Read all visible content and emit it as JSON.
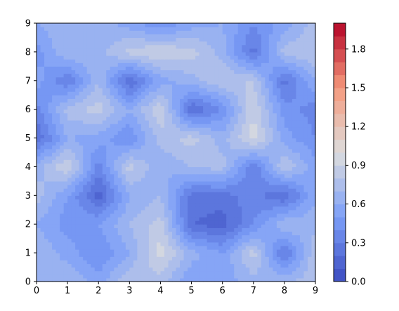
{
  "chart_data": {
    "type": "heatmap",
    "style": "filled-contour",
    "colormap": "coolwarm",
    "x_ticks": [
      "0",
      "1",
      "2",
      "3",
      "4",
      "5",
      "6",
      "7",
      "8",
      "9"
    ],
    "y_ticks": [
      "0",
      "1",
      "2",
      "3",
      "4",
      "5",
      "6",
      "7",
      "8",
      "9"
    ],
    "xlim": [
      0,
      9
    ],
    "ylim": [
      0,
      9
    ],
    "colorbar": {
      "min": 0.0,
      "max": 2.0,
      "levels": 20,
      "ticks": [
        "0.0",
        "0.3",
        "0.6",
        "0.9",
        "1.2",
        "1.5",
        "1.8"
      ],
      "tick_values": [
        0.0,
        0.3,
        0.6,
        0.9,
        1.2,
        1.5,
        1.8
      ]
    },
    "z": [
      [
        0.65,
        0.7,
        0.55,
        0.8,
        0.75,
        0.5,
        0.55,
        0.65,
        0.7,
        0.75
      ],
      [
        0.7,
        0.55,
        0.4,
        0.6,
        0.95,
        0.65,
        0.5,
        0.85,
        0.25,
        0.8
      ],
      [
        0.6,
        0.45,
        0.5,
        0.7,
        0.85,
        0.2,
        0.15,
        0.4,
        0.7,
        0.65
      ],
      [
        0.75,
        0.5,
        0.15,
        0.6,
        0.7,
        0.25,
        0.25,
        0.35,
        0.2,
        0.6
      ],
      [
        0.65,
        0.9,
        0.35,
        0.85,
        0.6,
        0.7,
        0.75,
        0.3,
        0.8,
        0.55
      ],
      [
        0.2,
        0.6,
        0.55,
        0.4,
        0.75,
        0.85,
        0.65,
        0.95,
        0.55,
        0.4
      ],
      [
        0.35,
        0.75,
        0.85,
        0.6,
        0.9,
        0.2,
        0.4,
        0.9,
        0.45,
        0.35
      ],
      [
        0.55,
        0.3,
        0.7,
        0.2,
        0.55,
        0.65,
        0.8,
        0.8,
        0.25,
        0.6
      ],
      [
        0.45,
        0.7,
        0.65,
        0.85,
        0.9,
        0.85,
        0.65,
        0.25,
        0.75,
        0.8
      ],
      [
        0.6,
        0.7,
        0.65,
        0.55,
        0.4,
        0.55,
        0.6,
        0.4,
        0.55,
        0.75
      ]
    ]
  }
}
